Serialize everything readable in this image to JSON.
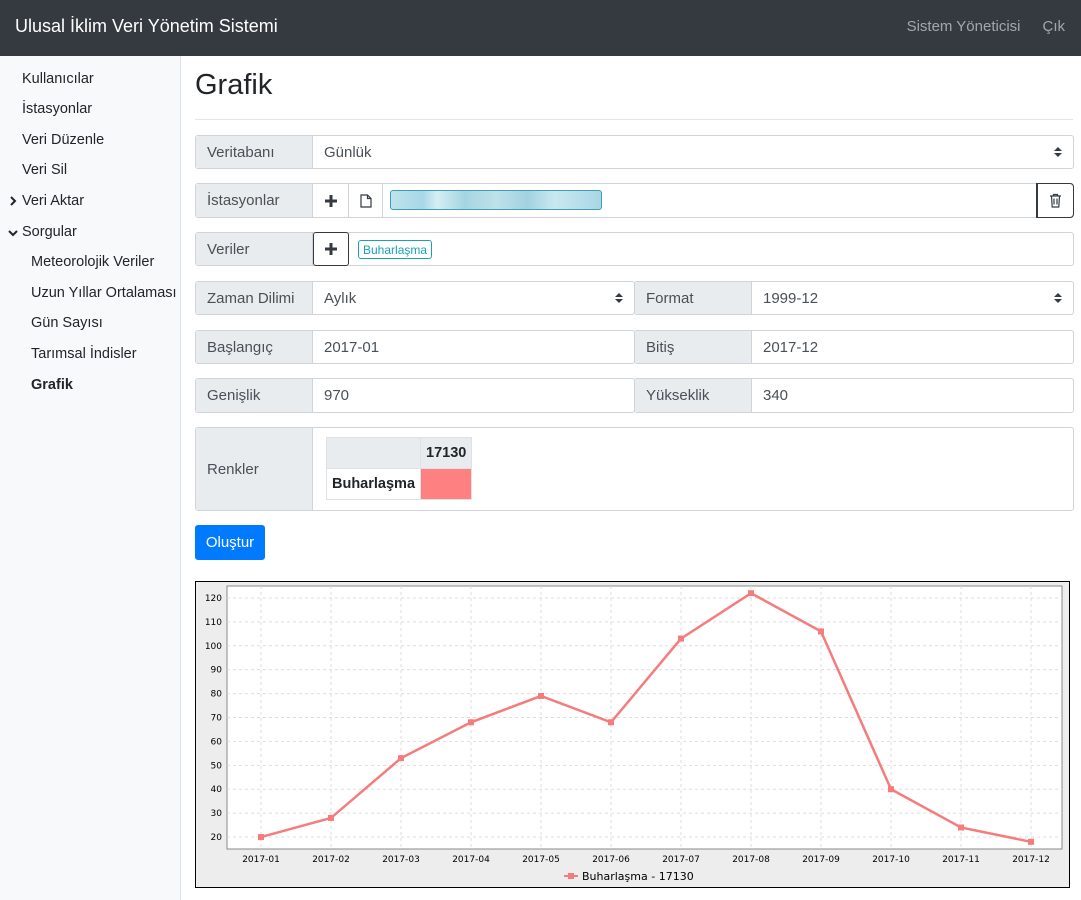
{
  "navbar": {
    "brand": "Ulusal İklim Veri Yönetim Sistemi",
    "user_link": "Sistem Yöneticisi",
    "logout_link": "Çık"
  },
  "sidebar": {
    "items": [
      {
        "label": "Kullanıcılar"
      },
      {
        "label": "İstasyonlar"
      },
      {
        "label": "Veri Düzenle"
      },
      {
        "label": "Veri Sil"
      },
      {
        "label": "Veri Aktar",
        "chevron": "chevron-right-icon"
      },
      {
        "label": "Sorgular",
        "chevron": "chevron-down-icon"
      }
    ],
    "sub_items": [
      {
        "label": "Meteorolojik Veriler"
      },
      {
        "label": "Uzun Yıllar Ortalaması"
      },
      {
        "label": "Gün Sayısı"
      },
      {
        "label": "Tarımsal İndisler"
      },
      {
        "label": "Grafik"
      }
    ]
  },
  "page": {
    "title": "Grafik"
  },
  "form": {
    "database": {
      "label": "Veritabanı",
      "value": "Günlük"
    },
    "stations": {
      "label": "İstasyonlar",
      "add_icon": "plus-icon",
      "file_icon": "file-icon",
      "delete_icon": "trash-icon"
    },
    "variables": {
      "label": "Veriler",
      "add_icon": "plus-icon",
      "tag": "Buharlaşma"
    },
    "time_zone": {
      "label": "Zaman Dilimi",
      "value": "Aylık"
    },
    "format": {
      "label": "Format",
      "value": "1999-12"
    },
    "start": {
      "label": "Başlangıç",
      "value": "2017-01"
    },
    "end": {
      "label": "Bitiş",
      "value": "2017-12"
    },
    "width": {
      "label": "Genişlik",
      "value": "970"
    },
    "height": {
      "label": "Yükseklik",
      "value": "340"
    },
    "colors": {
      "label": "Renkler",
      "column_header": "17130",
      "row_header": "Buharlaşma",
      "swatch_color": "#ff8080"
    },
    "submit_label": "Oluştur"
  },
  "chart_data": {
    "type": "line",
    "categories": [
      "2017-01",
      "2017-02",
      "2017-03",
      "2017-04",
      "2017-05",
      "2017-06",
      "2017-07",
      "2017-08",
      "2017-09",
      "2017-10",
      "2017-11",
      "2017-12"
    ],
    "series": [
      {
        "name": "Buharlaşma - 17130",
        "values": [
          20,
          28,
          53,
          68,
          79,
          68,
          103,
          122,
          106,
          40,
          24,
          18
        ],
        "color": "#f47c7c"
      }
    ],
    "yticks": [
      20,
      30,
      40,
      50,
      60,
      70,
      80,
      90,
      100,
      110,
      120
    ],
    "ylim": [
      15,
      125
    ],
    "grid": true,
    "legend_position": "bottom-center"
  }
}
